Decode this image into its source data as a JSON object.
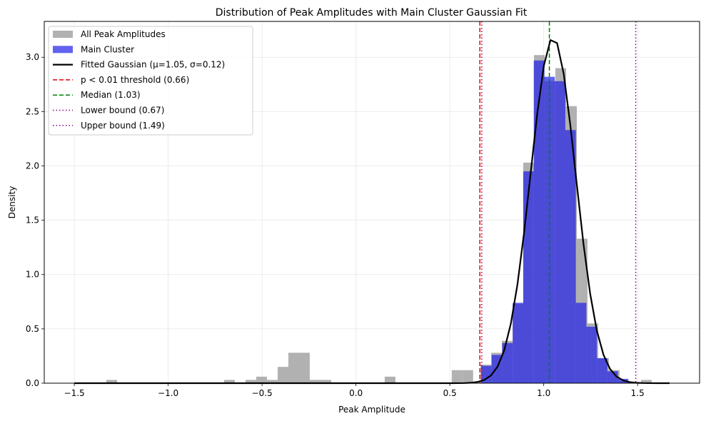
{
  "chart_data": {
    "type": "bar",
    "title": "Distribution of Peak Amplitudes with Main Cluster Gaussian Fit",
    "xlabel": "Peak Amplitude",
    "ylabel": "Density",
    "xlim": [
      -1.66,
      1.83
    ],
    "ylim": [
      0,
      3.33
    ],
    "xticks": [
      -1.5,
      -1.0,
      -0.5,
      0.0,
      0.5,
      1.0,
      1.5
    ],
    "xtick_labels": [
      "−1.5",
      "−1.0",
      "−0.5",
      "0.0",
      "0.5",
      "1.0",
      "1.5"
    ],
    "yticks": [
      0.0,
      0.5,
      1.0,
      1.5,
      2.0,
      2.5,
      3.0
    ],
    "ytick_labels": [
      "0.0",
      "0.5",
      "1.0",
      "1.5",
      "2.0",
      "2.5",
      "3.0"
    ],
    "grid": true,
    "legend_position": "top-left",
    "series": [
      {
        "name": "All Peak Amplitudes",
        "kind": "histogram",
        "color": "#a9a9a9",
        "bin_width": 0.057,
        "bins": [
          {
            "x0": -1.5,
            "h": 0.0
          },
          {
            "x0": -1.443,
            "h": 0.0
          },
          {
            "x0": -1.386,
            "h": 0.0
          },
          {
            "x0": -1.329,
            "h": 0.03
          },
          {
            "x0": -1.272,
            "h": 0.0
          },
          {
            "x0": -0.702,
            "h": 0.03
          },
          {
            "x0": -0.588,
            "h": 0.03
          },
          {
            "x0": -0.531,
            "h": 0.06
          },
          {
            "x0": -0.474,
            "h": 0.03
          },
          {
            "x0": -0.417,
            "h": 0.15
          },
          {
            "x0": -0.36,
            "h": 0.28
          },
          {
            "x0": -0.303,
            "h": 0.28
          },
          {
            "x0": -0.246,
            "h": 0.03
          },
          {
            "x0": -0.189,
            "h": 0.03
          },
          {
            "x0": 0.153,
            "h": 0.06
          },
          {
            "x0": 0.51,
            "h": 0.12
          },
          {
            "x0": 0.567,
            "h": 0.12
          },
          {
            "x0": 0.663,
            "h": 0.17
          },
          {
            "x0": 0.72,
            "h": 0.28
          },
          {
            "x0": 0.777,
            "h": 0.39
          },
          {
            "x0": 0.834,
            "h": 0.73
          },
          {
            "x0": 0.891,
            "h": 2.03
          },
          {
            "x0": 0.948,
            "h": 3.02
          },
          {
            "x0": 1.005,
            "h": 2.78
          },
          {
            "x0": 1.062,
            "h": 2.9
          },
          {
            "x0": 1.119,
            "h": 2.55
          },
          {
            "x0": 1.176,
            "h": 1.33
          },
          {
            "x0": 1.233,
            "h": 0.55
          },
          {
            "x0": 1.29,
            "h": 0.23
          },
          {
            "x0": 1.347,
            "h": 0.12
          },
          {
            "x0": 1.404,
            "h": 0.02
          },
          {
            "x0": 1.461,
            "h": 0.01
          },
          {
            "x0": 1.518,
            "h": 0.03
          }
        ]
      },
      {
        "name": "Main Cluster",
        "kind": "histogram",
        "color": "#2020e8",
        "bins": [
          {
            "x0": 0.667,
            "x1": 0.723,
            "h": 0.16
          },
          {
            "x0": 0.723,
            "x1": 0.779,
            "h": 0.26
          },
          {
            "x0": 0.779,
            "x1": 0.835,
            "h": 0.37
          },
          {
            "x0": 0.835,
            "x1": 0.891,
            "h": 0.74
          },
          {
            "x0": 0.891,
            "x1": 0.947,
            "h": 1.95
          },
          {
            "x0": 0.947,
            "x1": 1.003,
            "h": 2.97
          },
          {
            "x0": 1.003,
            "x1": 1.059,
            "h": 2.82
          },
          {
            "x0": 1.059,
            "x1": 1.115,
            "h": 2.78
          },
          {
            "x0": 1.115,
            "x1": 1.171,
            "h": 2.33
          },
          {
            "x0": 1.171,
            "x1": 1.227,
            "h": 0.74
          },
          {
            "x0": 1.227,
            "x1": 1.283,
            "h": 0.52
          },
          {
            "x0": 1.283,
            "x1": 1.339,
            "h": 0.23
          },
          {
            "x0": 1.339,
            "x1": 1.395,
            "h": 0.11
          },
          {
            "x0": 1.395,
            "x1": 1.451,
            "h": 0.04
          }
        ]
      },
      {
        "name": "Fitted Gaussian (μ=1.05, σ=0.12)",
        "kind": "line",
        "color": "#000000",
        "mu": 1.05,
        "sigma": 0.12,
        "amplitude": 3.18,
        "x_range": [
          -1.5,
          1.67
        ]
      },
      {
        "name": "p < 0.01 threshold (0.66)",
        "kind": "vline",
        "x": 0.66,
        "color": "#e8000b",
        "dash": "dashed"
      },
      {
        "name": "Median (1.03)",
        "kind": "vline",
        "x": 1.03,
        "color": "#008000",
        "dash": "dashed"
      },
      {
        "name": "Lower bound (0.67)",
        "kind": "vline",
        "x": 0.67,
        "color": "#800080",
        "dash": "dotted"
      },
      {
        "name": "Upper bound (1.49)",
        "kind": "vline",
        "x": 1.49,
        "color": "#800080",
        "dash": "dotted"
      }
    ]
  }
}
